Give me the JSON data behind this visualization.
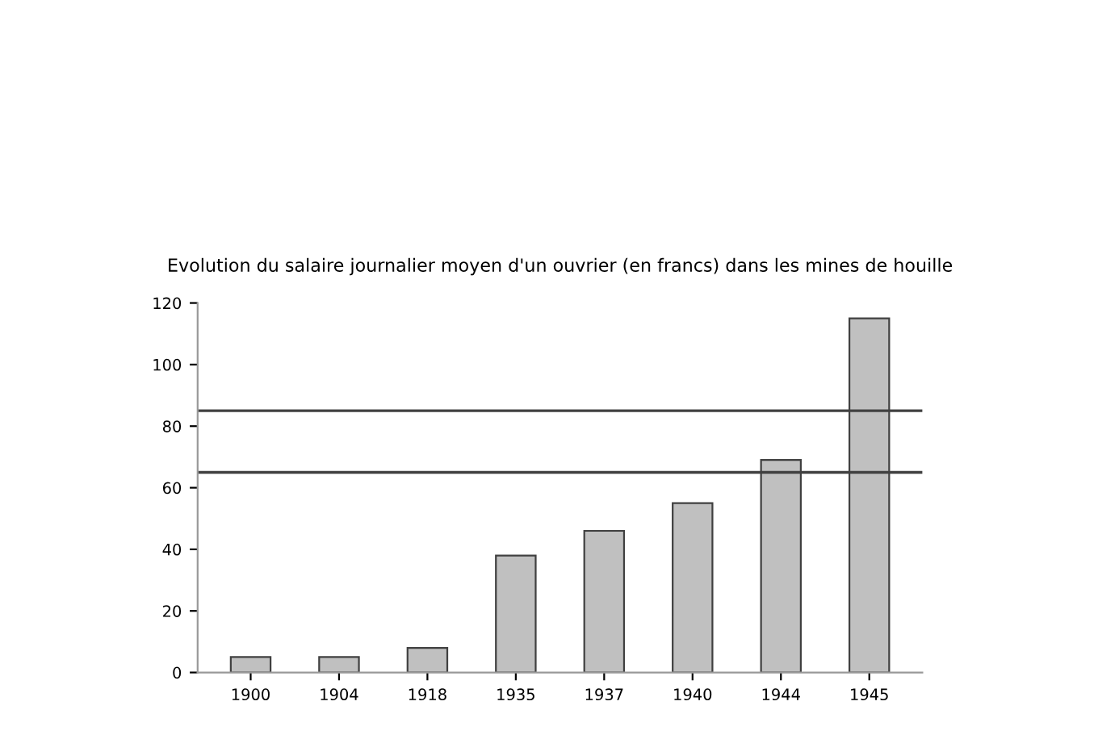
{
  "chart_data": {
    "type": "bar",
    "title": "Evolution du salaire journalier moyen d'un ouvrier (en francs) dans les mines de houille",
    "categories": [
      "1900",
      "1904",
      "1918",
      "1935",
      "1937",
      "1940",
      "1944",
      "1945"
    ],
    "values": [
      5,
      5,
      8,
      38,
      46,
      55,
      69,
      115
    ],
    "color": "#c0c0c0",
    "ylim": [
      0,
      120
    ],
    "yticks": [
      0,
      20,
      40,
      60,
      80,
      100,
      120
    ],
    "grid": false,
    "ref_lines": [
      {
        "axis": "y",
        "value": 85,
        "color": "#404040"
      },
      {
        "axis": "y",
        "value": 65,
        "color": "#404040"
      }
    ]
  }
}
